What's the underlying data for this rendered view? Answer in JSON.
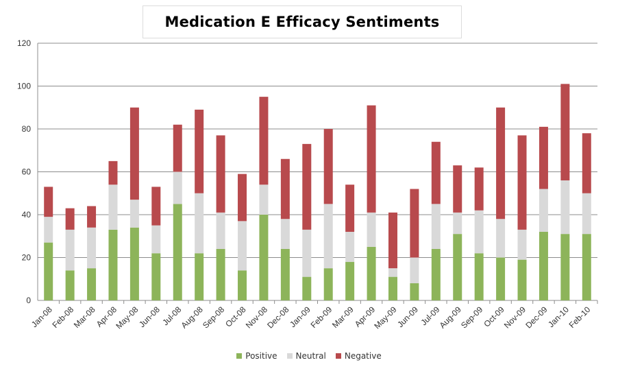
{
  "chart_data": {
    "type": "bar",
    "stacked": true,
    "title": "Medication E Efficacy Sentiments",
    "xlabel": "",
    "ylabel": "",
    "ylim": [
      0,
      120
    ],
    "yticks": [
      0,
      20,
      40,
      60,
      80,
      100,
      120
    ],
    "grid": true,
    "legend_position": "bottom",
    "categories": [
      "Jan-08",
      "Feb-08",
      "Mar-08",
      "Apr-08",
      "May-08",
      "Jun-08",
      "Jul-08",
      "Aug-08",
      "Sep-08",
      "Oct-08",
      "Nov-08",
      "Dec-08",
      "Jan-09",
      "Feb-09",
      "Mar-09",
      "Apr-09",
      "May-09",
      "Jun-09",
      "Jul-09",
      "Aug-09",
      "Sep-09",
      "Oct-09",
      "Nov-09",
      "Dec-09",
      "Jan-10",
      "Feb-10"
    ],
    "series": [
      {
        "name": "Positive",
        "color": "#8db45a",
        "values": [
          27,
          14,
          15,
          33,
          34,
          22,
          45,
          22,
          24,
          14,
          40,
          24,
          11,
          15,
          18,
          25,
          11,
          8,
          24,
          31,
          22,
          20,
          19,
          32,
          31,
          31
        ]
      },
      {
        "name": "Neutral",
        "color": "#d9d9d9",
        "values": [
          12,
          19,
          19,
          21,
          13,
          13,
          15,
          28,
          17,
          23,
          14,
          14,
          22,
          30,
          14,
          16,
          4,
          12,
          21,
          10,
          20,
          18,
          14,
          20,
          25,
          19
        ]
      },
      {
        "name": "Negative",
        "color": "#b84a4d",
        "values": [
          14,
          10,
          10,
          11,
          43,
          18,
          22,
          39,
          36,
          22,
          41,
          28,
          40,
          35,
          22,
          50,
          26,
          32,
          29,
          22,
          20,
          52,
          44,
          29,
          45,
          28
        ]
      }
    ]
  }
}
